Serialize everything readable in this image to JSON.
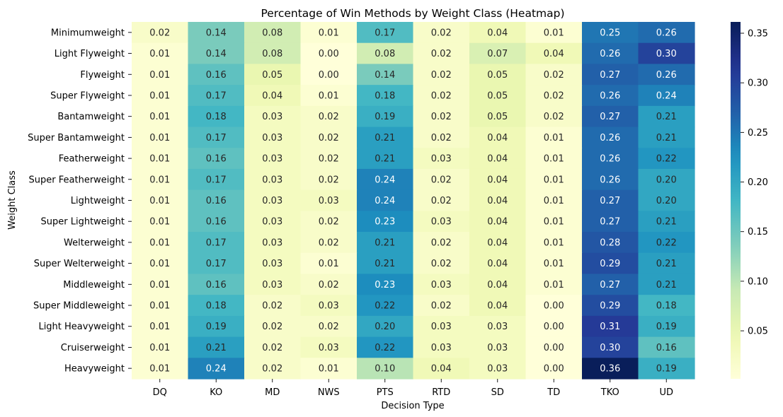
{
  "chart_data": {
    "type": "heatmap",
    "title": "Percentage of Win Methods by Weight Class (Heatmap)",
    "xlabel": "Decision Type",
    "ylabel": "Weight Class",
    "x_categories": [
      "DQ",
      "KO",
      "MD",
      "NWS",
      "PTS",
      "RTD",
      "SD",
      "TD",
      "TKO",
      "UD"
    ],
    "y_categories": [
      "Minimumweight",
      "Light Flyweight",
      "Flyweight",
      "Super Flyweight",
      "Bantamweight",
      "Super Bantamweight",
      "Featherweight",
      "Super Featherweight",
      "Lightweight",
      "Super Lightweight",
      "Welterweight",
      "Super Welterweight",
      "Middleweight",
      "Super Middleweight",
      "Light Heavyweight",
      "Cruiserweight",
      "Heavyweight"
    ],
    "values": [
      [
        0.02,
        0.14,
        0.08,
        0.01,
        0.17,
        0.02,
        0.04,
        0.01,
        0.25,
        0.26
      ],
      [
        0.01,
        0.14,
        0.08,
        0.0,
        0.08,
        0.02,
        0.07,
        0.04,
        0.26,
        0.3
      ],
      [
        0.01,
        0.16,
        0.05,
        0.0,
        0.14,
        0.02,
        0.05,
        0.02,
        0.27,
        0.26
      ],
      [
        0.01,
        0.17,
        0.04,
        0.01,
        0.18,
        0.02,
        0.05,
        0.02,
        0.26,
        0.24
      ],
      [
        0.01,
        0.18,
        0.03,
        0.02,
        0.19,
        0.02,
        0.05,
        0.02,
        0.27,
        0.21
      ],
      [
        0.01,
        0.17,
        0.03,
        0.02,
        0.21,
        0.02,
        0.04,
        0.01,
        0.26,
        0.21
      ],
      [
        0.01,
        0.16,
        0.03,
        0.02,
        0.21,
        0.03,
        0.04,
        0.01,
        0.26,
        0.22
      ],
      [
        0.01,
        0.17,
        0.03,
        0.02,
        0.24,
        0.02,
        0.04,
        0.01,
        0.26,
        0.2
      ],
      [
        0.01,
        0.16,
        0.03,
        0.03,
        0.24,
        0.02,
        0.04,
        0.01,
        0.27,
        0.2
      ],
      [
        0.01,
        0.16,
        0.03,
        0.02,
        0.23,
        0.03,
        0.04,
        0.01,
        0.27,
        0.21
      ],
      [
        0.01,
        0.17,
        0.03,
        0.02,
        0.21,
        0.02,
        0.04,
        0.01,
        0.28,
        0.22
      ],
      [
        0.01,
        0.17,
        0.03,
        0.01,
        0.21,
        0.02,
        0.04,
        0.01,
        0.29,
        0.21
      ],
      [
        0.01,
        0.16,
        0.03,
        0.02,
        0.23,
        0.03,
        0.04,
        0.01,
        0.27,
        0.21
      ],
      [
        0.01,
        0.18,
        0.02,
        0.03,
        0.22,
        0.02,
        0.04,
        0.0,
        0.29,
        0.18
      ],
      [
        0.01,
        0.19,
        0.02,
        0.02,
        0.2,
        0.03,
        0.03,
        0.0,
        0.31,
        0.19
      ],
      [
        0.01,
        0.21,
        0.02,
        0.03,
        0.22,
        0.03,
        0.03,
        0.0,
        0.3,
        0.16
      ],
      [
        0.01,
        0.24,
        0.02,
        0.01,
        0.1,
        0.04,
        0.03,
        0.0,
        0.36,
        0.19
      ]
    ],
    "colormap": "YlGnBu",
    "colorbar": {
      "ticks": [
        0.05,
        0.1,
        0.15,
        0.2,
        0.25,
        0.3,
        0.35
      ],
      "tick_labels": [
        "0.05",
        "0.10",
        "0.15",
        "0.20",
        "0.25",
        "0.30",
        "0.35"
      ]
    },
    "annotated": true,
    "annotation_format": "2 decimals"
  }
}
